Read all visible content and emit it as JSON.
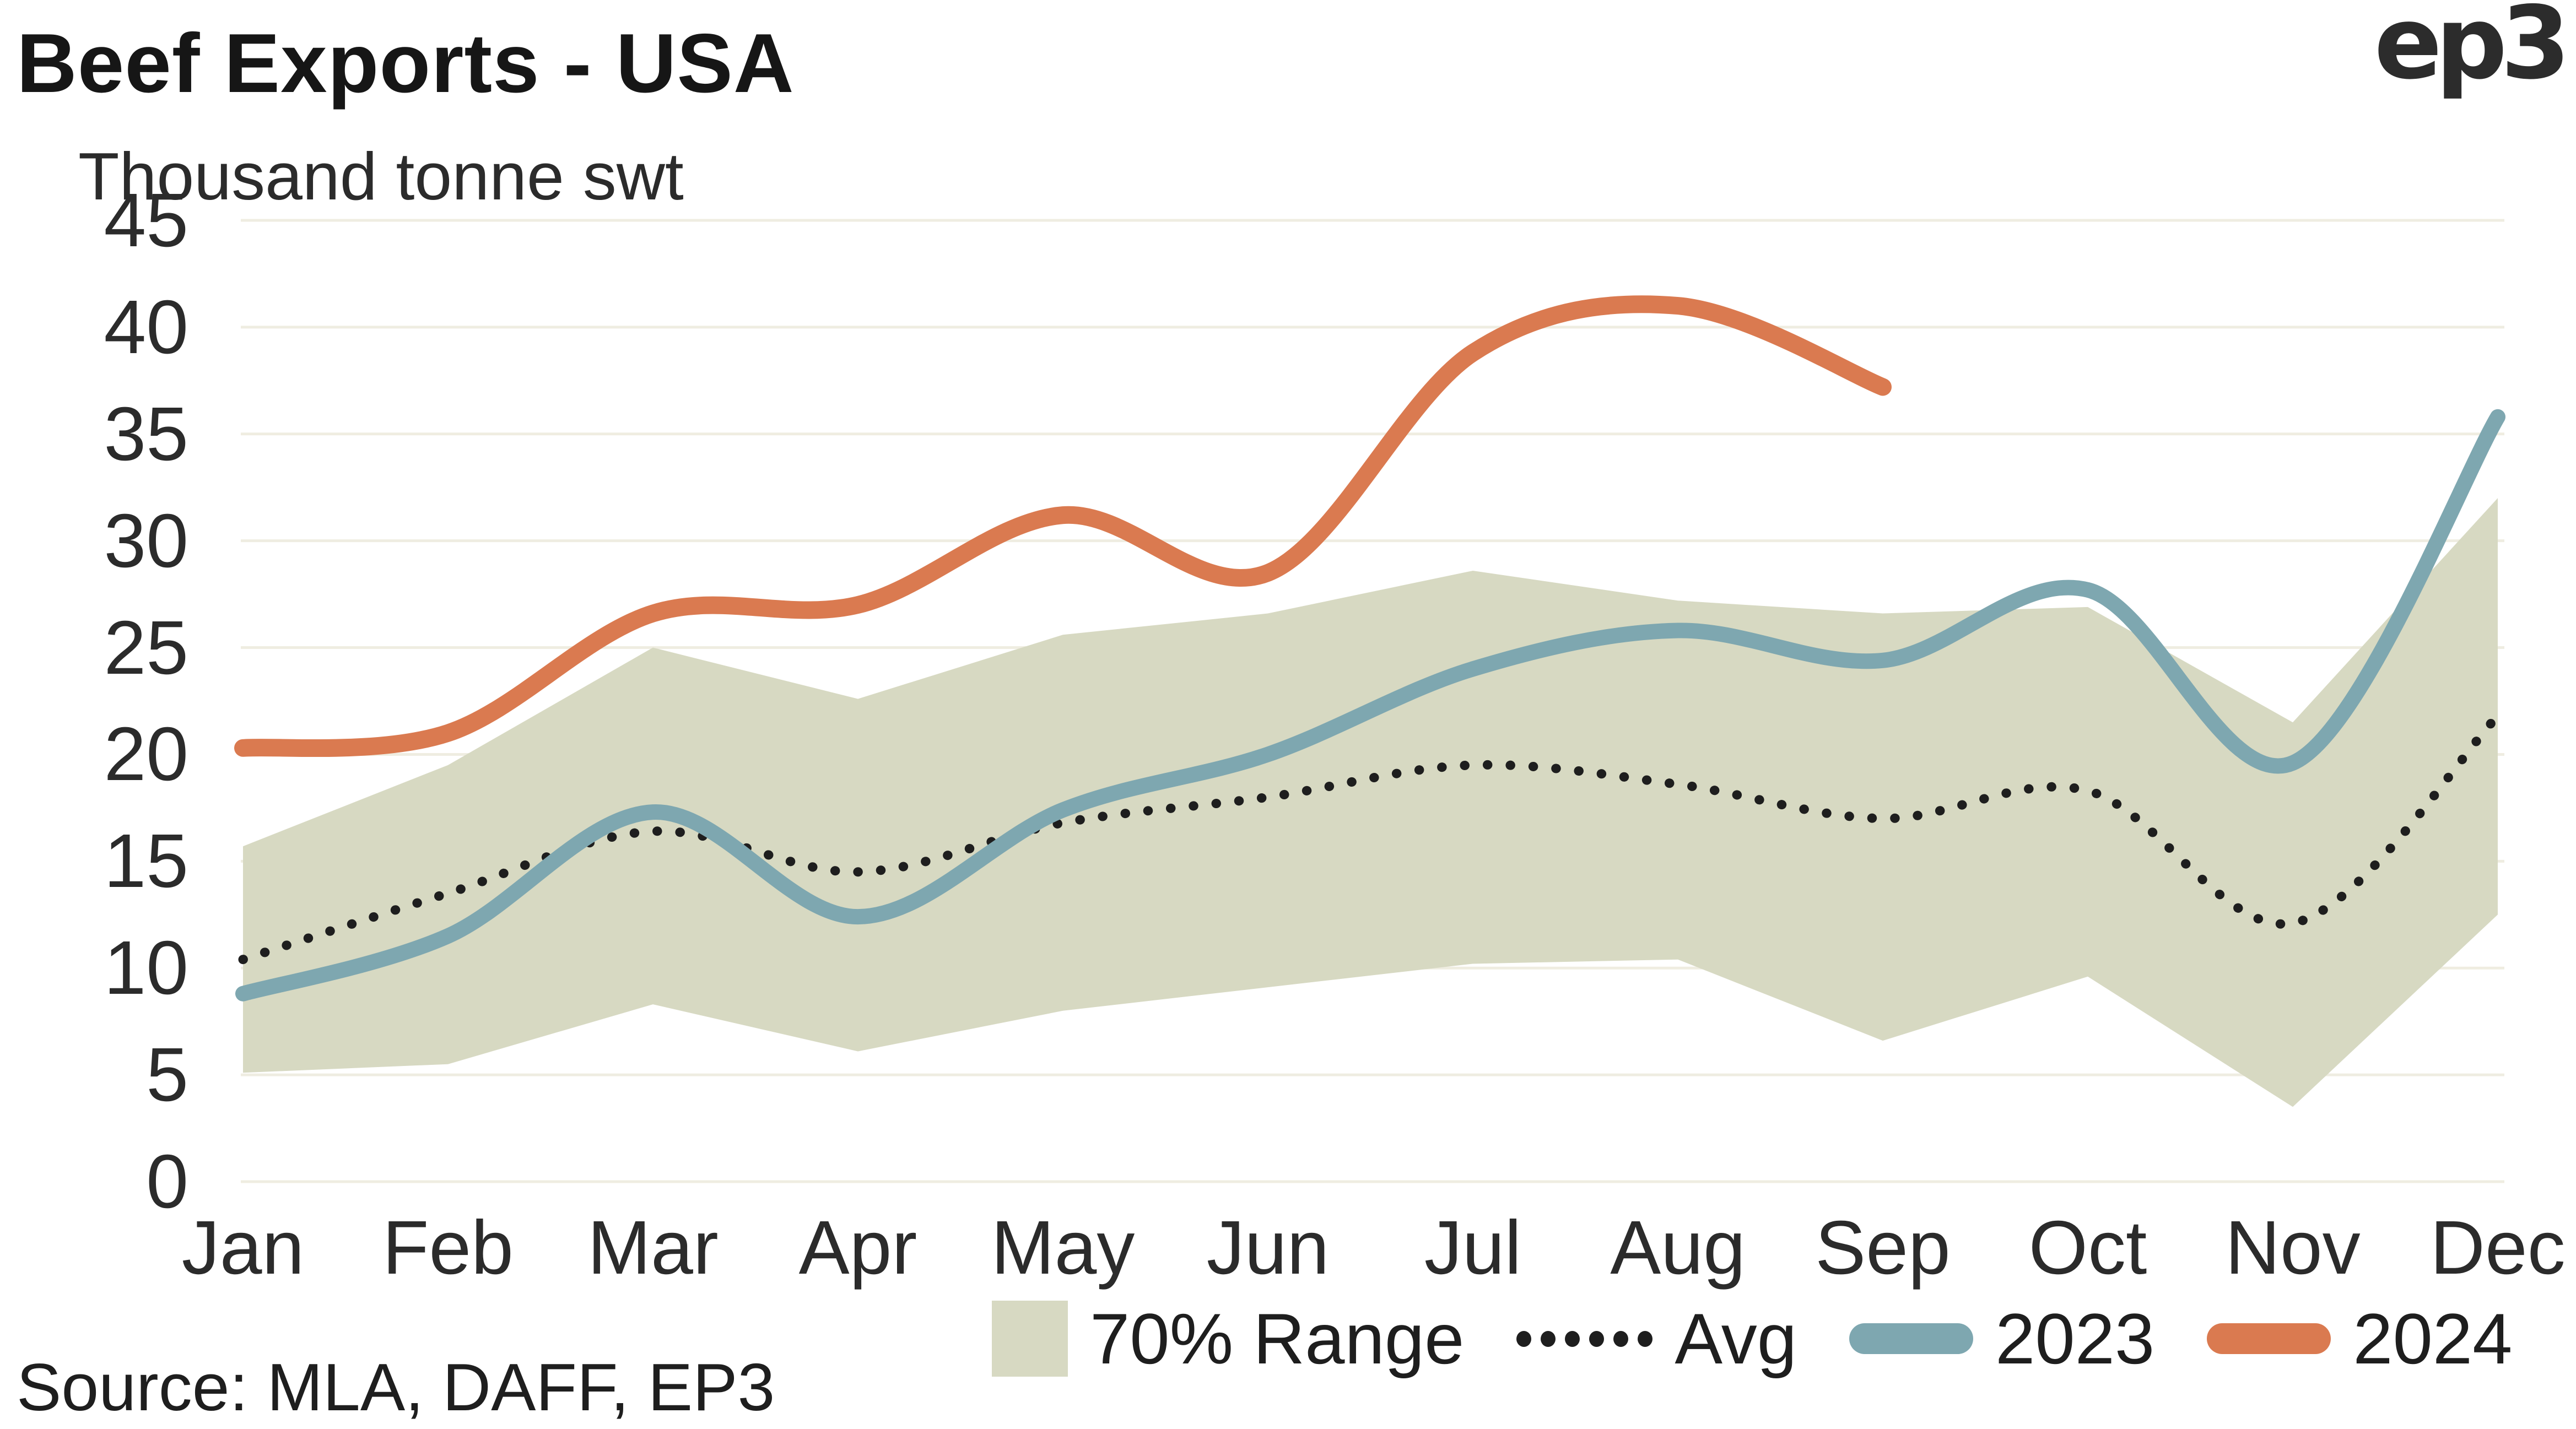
{
  "header": {
    "title": "Beef Exports - USA",
    "subtitle": "Thousand tonne swt",
    "logo": "ep3"
  },
  "source": {
    "text": "Source: MLA, DAFF, EP3"
  },
  "legend": {
    "items": [
      {
        "label": "70% Range",
        "swatch": "band-square"
      },
      {
        "label": "Avg",
        "swatch": "dotted-line"
      },
      {
        "label": "2023",
        "swatch": "teal-bar"
      },
      {
        "label": "2024",
        "swatch": "orange-bar"
      }
    ]
  },
  "chart_data": {
    "type": "line",
    "title": "Beef Exports - USA",
    "ylabel": "Thousand tonne swt",
    "xlabel": "",
    "categories": [
      "Jan",
      "Feb",
      "Mar",
      "Apr",
      "May",
      "Jun",
      "Jul",
      "Aug",
      "Sep",
      "Oct",
      "Nov",
      "Dec"
    ],
    "ylim": [
      0,
      45
    ],
    "yticks": [
      0,
      5,
      10,
      15,
      20,
      25,
      30,
      35,
      40,
      45
    ],
    "grid": "horizontal",
    "legend_position": "bottom",
    "colors": {
      "band": "#d7d9c2",
      "avg": "#1e1e1e",
      "y2023": "#7ea7b0",
      "y2024": "#da7a50",
      "gridline": "#efede1",
      "text": "#2b2b2b"
    },
    "series": [
      {
        "name": "70% Range",
        "type": "band",
        "upper": [
          15.7,
          19.5,
          25.0,
          22.6,
          25.6,
          26.6,
          28.6,
          27.2,
          26.6,
          26.9,
          21.5,
          32.0
        ],
        "lower": [
          5.1,
          5.5,
          8.3,
          6.1,
          8.0,
          9.1,
          10.2,
          10.4,
          6.6,
          9.6,
          3.5,
          12.5
        ]
      },
      {
        "name": "Avg",
        "type": "dotted-line",
        "values": [
          10.4,
          13.5,
          16.4,
          14.5,
          16.8,
          18.0,
          19.5,
          18.6,
          17.0,
          18.3,
          12.1,
          21.8
        ]
      },
      {
        "name": "2023",
        "type": "line",
        "values": [
          8.8,
          11.5,
          17.3,
          12.4,
          17.4,
          20.0,
          24.0,
          25.8,
          24.4,
          27.7,
          19.6,
          35.8
        ]
      },
      {
        "name": "2024",
        "type": "line",
        "values": [
          20.3,
          21.0,
          26.6,
          27.0,
          31.2,
          28.5,
          38.8,
          41.0,
          37.2
        ]
      }
    ]
  }
}
